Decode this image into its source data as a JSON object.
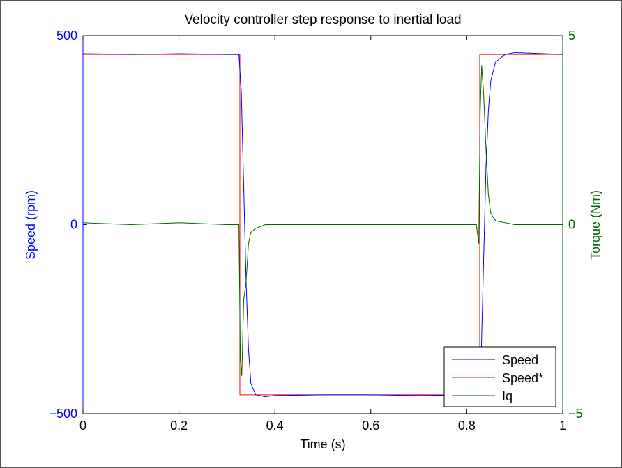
{
  "chart_data": {
    "type": "line",
    "title": "Velocity controller step response to inertial load",
    "xlabel": "Time (s)",
    "ylabel_left": "Speed (rpm)",
    "ylabel_right": "Torque (Nm)",
    "xlim": [
      0,
      1
    ],
    "ylim_left": [
      -500,
      500
    ],
    "ylim_right": [
      -5,
      5
    ],
    "x_ticks": [
      "0",
      "0.2",
      "0.4",
      "0.6",
      "0.8",
      "1"
    ],
    "y_ticks_left": [
      "500",
      "0",
      "−500"
    ],
    "y_ticks_right": [
      "5",
      "0",
      "−5"
    ],
    "legend_position": "bottom-right",
    "colors": {
      "speed": "#0000ff",
      "speed_ref": "#ff0000",
      "iq": "#006400",
      "left_axis": "#0000ff",
      "right_axis": "#006400"
    },
    "series": [
      {
        "name": "Speed",
        "axis": "left",
        "x": [
          0,
          0.1,
          0.2,
          0.3,
          0.325,
          0.33,
          0.335,
          0.34,
          0.345,
          0.35,
          0.36,
          0.38,
          0.4,
          0.5,
          0.6,
          0.7,
          0.8,
          0.825,
          0.83,
          0.835,
          0.84,
          0.845,
          0.85,
          0.86,
          0.88,
          0.9,
          1.0
        ],
        "y": [
          452,
          450,
          452,
          450,
          450,
          350,
          100,
          -150,
          -330,
          -420,
          -450,
          -455,
          -452,
          -450,
          -450,
          -452,
          -450,
          -450,
          -350,
          -100,
          150,
          300,
          380,
          430,
          450,
          455,
          450
        ]
      },
      {
        "name": "Speed*",
        "axis": "left",
        "x": [
          0,
          0.327,
          0.327,
          0.827,
          0.827,
          1.0
        ],
        "y": [
          450,
          450,
          -450,
          -450,
          450,
          450
        ]
      },
      {
        "name": "Iq",
        "axis": "right",
        "x": [
          0,
          0.1,
          0.2,
          0.3,
          0.32,
          0.325,
          0.328,
          0.331,
          0.335,
          0.34,
          0.345,
          0.35,
          0.36,
          0.38,
          0.5,
          0.6,
          0.7,
          0.8,
          0.82,
          0.825,
          0.828,
          0.831,
          0.835,
          0.84,
          0.845,
          0.85,
          0.86,
          0.9,
          1.0
        ],
        "y": [
          0.05,
          0.0,
          0.05,
          0.0,
          0.0,
          0.0,
          -3.5,
          -4.0,
          -2.0,
          -1.5,
          -0.5,
          -0.2,
          -0.1,
          0.0,
          0.0,
          0.0,
          0.0,
          0.0,
          0.0,
          -0.5,
          3.0,
          4.2,
          3.5,
          2.0,
          0.8,
          0.3,
          0.1,
          0.0,
          0.0
        ]
      }
    ]
  }
}
